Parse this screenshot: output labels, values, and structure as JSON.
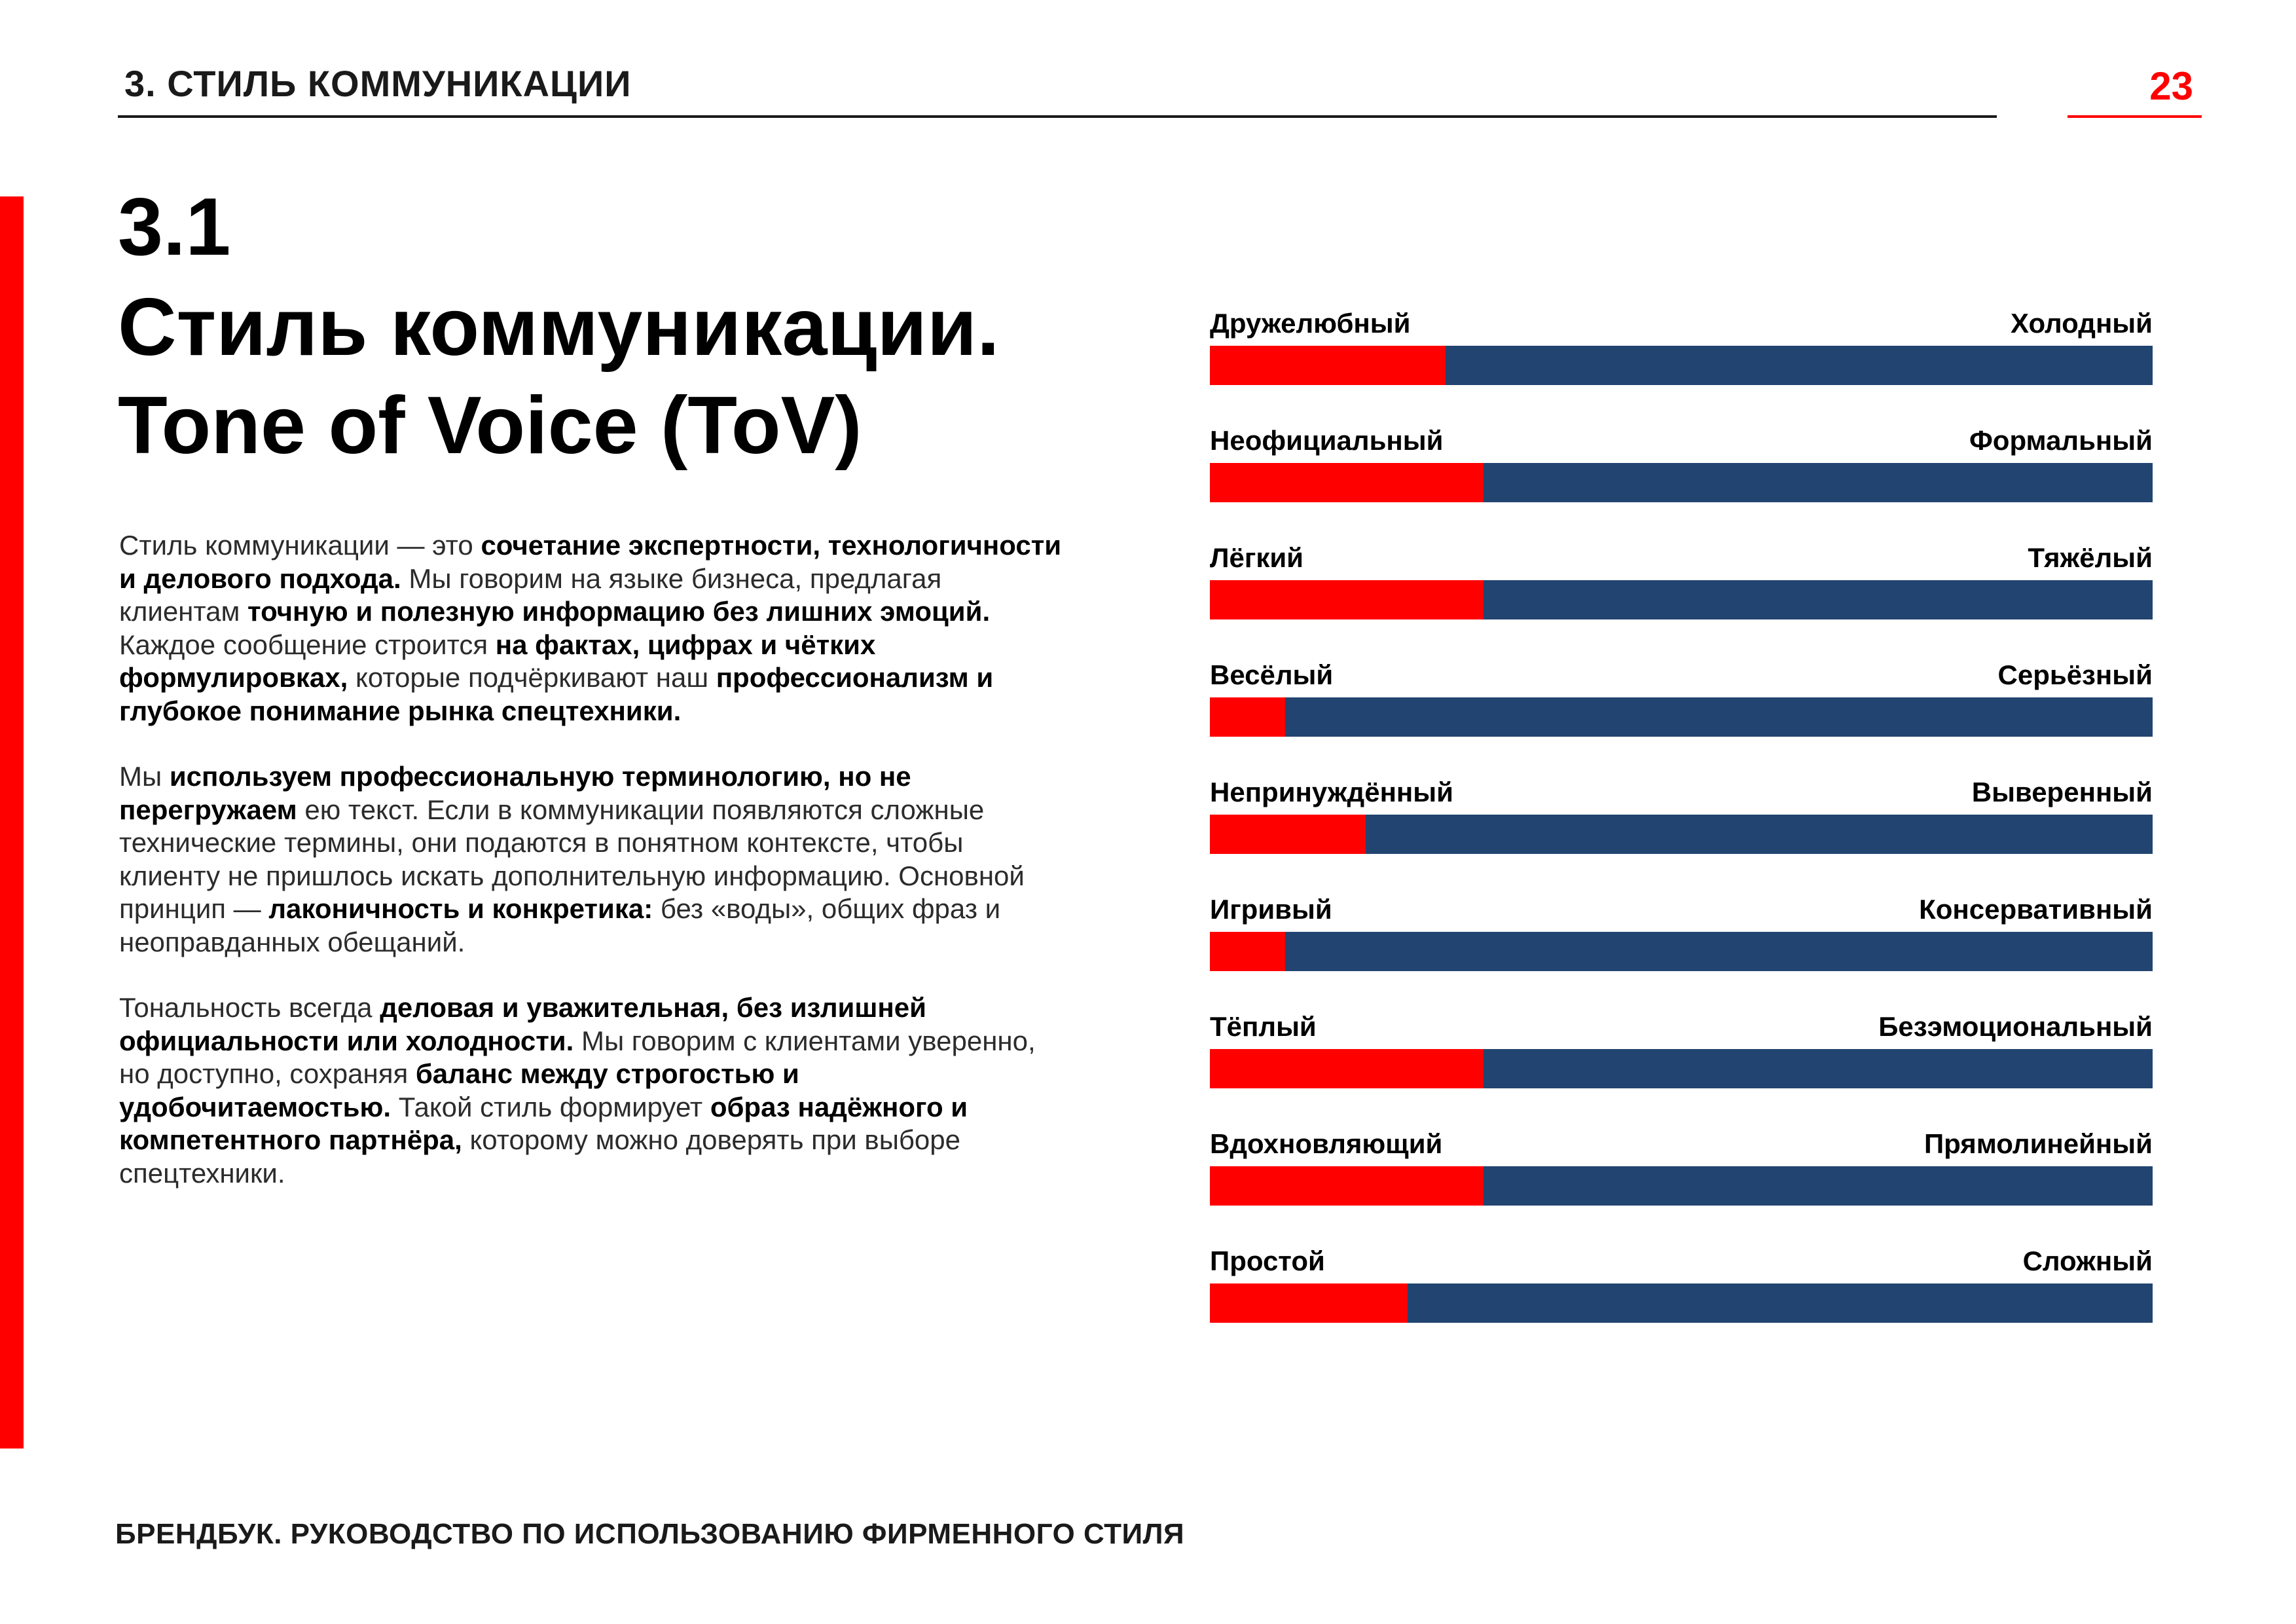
{
  "header": {
    "section_label": "3.  СТИЛЬ КОММУНИКАЦИИ",
    "page_number": "23"
  },
  "title": {
    "number": "3.1",
    "line1": "Стиль коммуникации.",
    "line2": "Tone of Voice (ToV)"
  },
  "body": {
    "paragraphs": [
      [
        {
          "t": "Стиль коммуникации — это ",
          "b": false
        },
        {
          "t": "сочетание экспертности, технологичности и делового подхода.",
          "b": true
        },
        {
          "t": " Мы говорим на языке бизнеса, предлагая клиентам ",
          "b": false
        },
        {
          "t": "точную и полезную информацию без лишних эмоций.",
          "b": true
        },
        {
          "t": " Каждое сообщение строится ",
          "b": false
        },
        {
          "t": "на фактах, цифрах и чётких формулировках,",
          "b": true
        },
        {
          "t": " которые подчёркивают наш ",
          "b": false
        },
        {
          "t": "профессионализм и глубокое понимание рынка спецтехники.",
          "b": true
        }
      ],
      [
        {
          "t": "Мы ",
          "b": false
        },
        {
          "t": "используем профессиональную терминологию, но не перегружаем",
          "b": true
        },
        {
          "t": " ею текст. Если в коммуникации появляются сложные технические термины, они подаются в понятном контексте, чтобы клиенту не пришлось искать дополнительную информацию. Основной принцип — ",
          "b": false
        },
        {
          "t": "лаконичность и конкретика:",
          "b": true
        },
        {
          "t": " без «воды», общих фраз и неоправданных обещаний.",
          "b": false
        }
      ],
      [
        {
          "t": "Тональность всегда ",
          "b": false
        },
        {
          "t": "деловая и уважительная, без излишней официальности или холодности.",
          "b": true
        },
        {
          "t": " Мы говорим с клиентами уверенно, но доступно, сохраняя ",
          "b": false
        },
        {
          "t": "баланс между строгостью и удобочитаемостью.",
          "b": true
        },
        {
          "t": " Такой стиль формирует ",
          "b": false
        },
        {
          "t": "образ надёжного и компетентного партнёра,",
          "b": true
        },
        {
          "t": " которому можно доверять при выборе спецтехники.",
          "b": false
        }
      ]
    ]
  },
  "scales": [
    {
      "left": "Дружелюбный",
      "right": "Холодный",
      "value": 0.25
    },
    {
      "left": "Неофициальный",
      "right": "Формальный",
      "value": 0.29
    },
    {
      "left": "Лёгкий",
      "right": "Тяжёлый",
      "value": 0.29
    },
    {
      "left": "Весёлый",
      "right": "Серьёзный",
      "value": 0.08
    },
    {
      "left": "Непринуждённый",
      "right": "Выверенный",
      "value": 0.165
    },
    {
      "left": "Игривый",
      "right": "Консервативный",
      "value": 0.08
    },
    {
      "left": "Тёплый",
      "right": "Безэмоциональный",
      "value": 0.29
    },
    {
      "left": "Вдохновляющий",
      "right": "Прямолинейный",
      "value": 0.29
    },
    {
      "left": "Простой",
      "right": "Сложный",
      "value": 0.21
    }
  ],
  "colors": {
    "accent": "#ff0000",
    "bar": "#224470",
    "text": "#000000"
  },
  "footer": {
    "text": "БРЕНДБУК. РУКОВОДСТВО ПО ИСПОЛЬЗОВАНИЮ ФИРМЕННОГО СТИЛЯ"
  }
}
